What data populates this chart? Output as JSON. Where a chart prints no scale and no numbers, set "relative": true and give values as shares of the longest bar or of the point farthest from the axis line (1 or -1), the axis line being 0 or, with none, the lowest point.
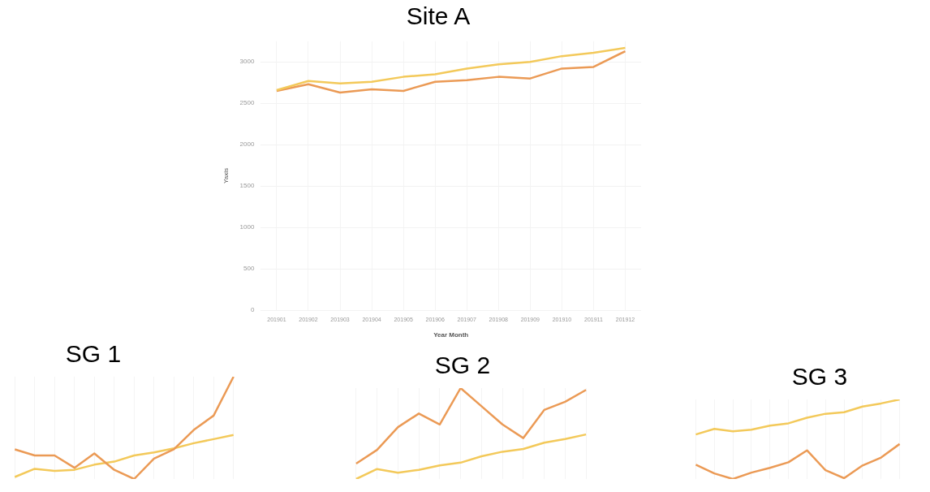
{
  "chart_data": [
    {
      "type": "line",
      "title": "Site A",
      "xlabel": "Year Month",
      "ylabel": "Yaxis",
      "categories": [
        "201901",
        "201902",
        "201903",
        "201904",
        "201905",
        "201906",
        "201907",
        "201908",
        "201909",
        "201910",
        "201911",
        "201912"
      ],
      "series": [
        {
          "color": "#f3c95a",
          "values": [
            2660,
            2770,
            2740,
            2760,
            2820,
            2850,
            2920,
            2970,
            3000,
            3070,
            3110,
            3170
          ]
        },
        {
          "color": "#eb9a55",
          "values": [
            2650,
            2730,
            2630,
            2670,
            2650,
            2760,
            2780,
            2820,
            2800,
            2920,
            2940,
            3130
          ]
        }
      ],
      "ylim": [
        0,
        3250
      ],
      "yticks": [
        0,
        500,
        1000,
        1500,
        2000,
        2500,
        3000
      ],
      "grid": true,
      "legend": false
    },
    {
      "type": "line",
      "title": "SG 1",
      "relative": true,
      "categories": [
        null,
        null,
        null,
        null,
        null,
        null,
        null,
        null,
        null,
        null,
        null,
        null
      ],
      "series": [
        {
          "color": "#eb9a55",
          "values": [
            0.29,
            0.23,
            0.23,
            0.11,
            0.25,
            0.09,
            0,
            0.2,
            0.29,
            0.48,
            0.62,
            1
          ]
        },
        {
          "color": "#f3c95a",
          "values": [
            0.02,
            0.1,
            0.08,
            0.09,
            0.14,
            0.17,
            0.23,
            0.26,
            0.3,
            0.35,
            0.39,
            0.43
          ]
        }
      ],
      "grid": "x",
      "legend": false
    },
    {
      "type": "line",
      "title": "SG 2",
      "relative": true,
      "categories": [
        null,
        null,
        null,
        null,
        null,
        null,
        null,
        null,
        null,
        null,
        null,
        null
      ],
      "series": [
        {
          "color": "#eb9a55",
          "values": [
            0.17,
            0.32,
            0.57,
            0.72,
            0.6,
            1,
            0.8,
            0.6,
            0.45,
            0.76,
            0.85,
            0.98
          ]
        },
        {
          "color": "#f3c95a",
          "values": [
            0,
            0.11,
            0.07,
            0.1,
            0.15,
            0.18,
            0.25,
            0.3,
            0.33,
            0.4,
            0.44,
            0.49
          ]
        }
      ],
      "grid": "x",
      "legend": false
    },
    {
      "type": "line",
      "title": "SG 3",
      "relative": true,
      "categories": [
        null,
        null,
        null,
        null,
        null,
        null,
        null,
        null,
        null,
        null,
        null,
        null
      ],
      "series": [
        {
          "color": "#f3c95a",
          "values": [
            0.56,
            0.63,
            0.6,
            0.62,
            0.67,
            0.7,
            0.77,
            0.82,
            0.84,
            0.91,
            0.95,
            1
          ]
        },
        {
          "color": "#eb9a55",
          "values": [
            0.18,
            0.07,
            0,
            0.08,
            0.14,
            0.21,
            0.36,
            0.11,
            0.01,
            0.17,
            0.27,
            0.44
          ]
        }
      ],
      "grid": "x",
      "legend": false
    }
  ]
}
